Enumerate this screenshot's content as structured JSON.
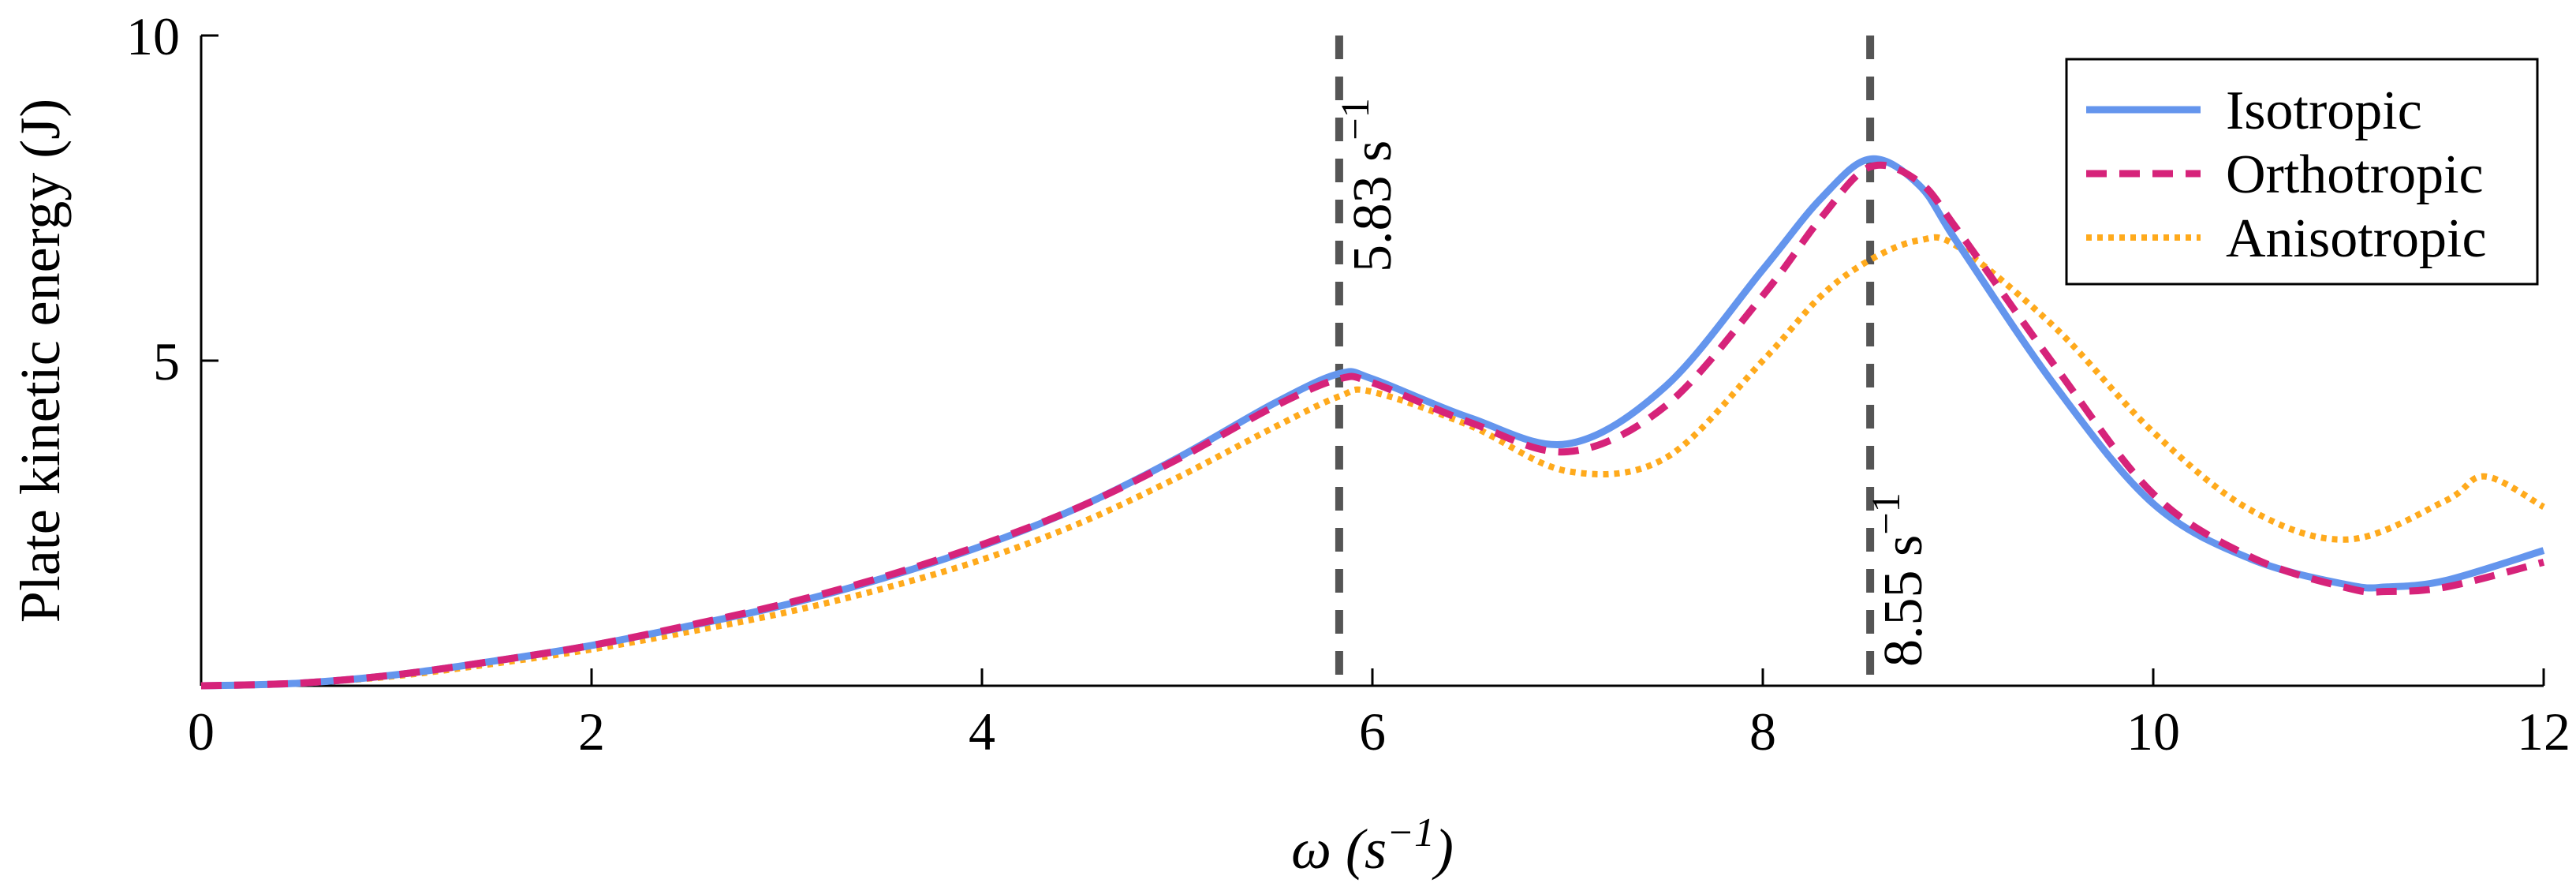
{
  "chart_data": {
    "type": "line",
    "title": "",
    "xlabel": "ω (s⁻¹)",
    "ylabel": "Plate kinetic energy (J)",
    "xlim": [
      0,
      12
    ],
    "ylim": [
      0,
      10
    ],
    "xticks": [
      0,
      2,
      4,
      6,
      8,
      10,
      12
    ],
    "yticks": [
      5,
      10
    ],
    "grid": false,
    "legend_position": "top-right",
    "reference_lines": [
      {
        "x": 5.83,
        "label": "5.83 s⁻¹",
        "color": "#555555"
      },
      {
        "x": 8.55,
        "label": "8.55 s⁻¹",
        "color": "#555555"
      }
    ],
    "series": [
      {
        "name": "Isotropic",
        "color": "#6495ED",
        "style": "solid",
        "x": [
          0,
          0.5,
          1,
          1.5,
          2,
          2.5,
          3,
          3.5,
          4,
          4.5,
          5,
          5.5,
          5.83,
          6,
          6.5,
          7,
          7.5,
          8,
          8.3,
          8.55,
          8.8,
          9,
          9.5,
          10,
          10.5,
          11,
          11.2,
          11.5,
          12
        ],
        "y": [
          0,
          0.04,
          0.17,
          0.38,
          0.62,
          0.92,
          1.25,
          1.66,
          2.15,
          2.75,
          3.5,
          4.35,
          4.8,
          4.72,
          4.12,
          3.72,
          4.6,
          6.4,
          7.5,
          8.1,
          7.7,
          6.8,
          4.6,
          2.8,
          1.95,
          1.55,
          1.52,
          1.62,
          2.08
        ]
      },
      {
        "name": "Orthotropic",
        "color": "#D6237A",
        "style": "dashed",
        "x": [
          0,
          0.5,
          1,
          1.5,
          2,
          2.5,
          3,
          3.5,
          4,
          4.5,
          5,
          5.5,
          5.83,
          6,
          6.5,
          7,
          7.5,
          8,
          8.3,
          8.55,
          8.8,
          9,
          9.5,
          10,
          10.5,
          11,
          11.2,
          11.5,
          12
        ],
        "y": [
          0,
          0.04,
          0.17,
          0.38,
          0.62,
          0.93,
          1.27,
          1.68,
          2.17,
          2.75,
          3.48,
          4.3,
          4.72,
          4.66,
          4.05,
          3.6,
          4.3,
          6.0,
          7.2,
          7.98,
          7.75,
          7.0,
          4.9,
          2.95,
          1.98,
          1.5,
          1.45,
          1.52,
          1.9
        ]
      },
      {
        "name": "Anisotropic",
        "color": "#FFAA1C",
        "style": "dotted",
        "x": [
          0,
          0.5,
          1,
          1.5,
          2,
          2.5,
          3,
          3.5,
          4,
          4.5,
          5,
          5.5,
          5.83,
          6,
          6.5,
          7,
          7.5,
          8,
          8.3,
          8.55,
          8.8,
          9,
          9.5,
          10,
          10.5,
          11,
          11.5,
          11.7,
          12
        ],
        "y": [
          0,
          0.04,
          0.15,
          0.34,
          0.56,
          0.83,
          1.13,
          1.5,
          1.94,
          2.5,
          3.2,
          3.98,
          4.45,
          4.52,
          4.0,
          3.3,
          3.5,
          5.0,
          6.0,
          6.55,
          6.85,
          6.75,
          5.5,
          3.9,
          2.7,
          2.25,
          2.85,
          3.22,
          2.75
        ]
      }
    ]
  }
}
